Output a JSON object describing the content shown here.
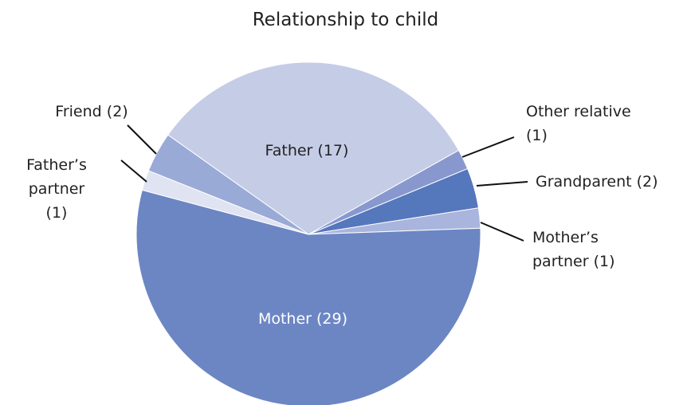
{
  "chart_data": {
    "type": "pie",
    "title": "Relationship to child",
    "categories": [
      "Father",
      "Other relative",
      "Grandparent",
      "Mother’s partner",
      "Mother",
      "Father’s partner",
      "Friend"
    ],
    "values": [
      17,
      1,
      2,
      1,
      29,
      1,
      2
    ],
    "value_labels": [
      "(17)",
      "(1)",
      "(2)",
      "(1)",
      "(29)",
      "(1)",
      "(2)"
    ],
    "colors": [
      "#c5cce6",
      "#8898cf",
      "#5577bb",
      "#a9b5dd",
      "#6c86c4",
      "#dfe3f2",
      "#9aaad6"
    ]
  }
}
